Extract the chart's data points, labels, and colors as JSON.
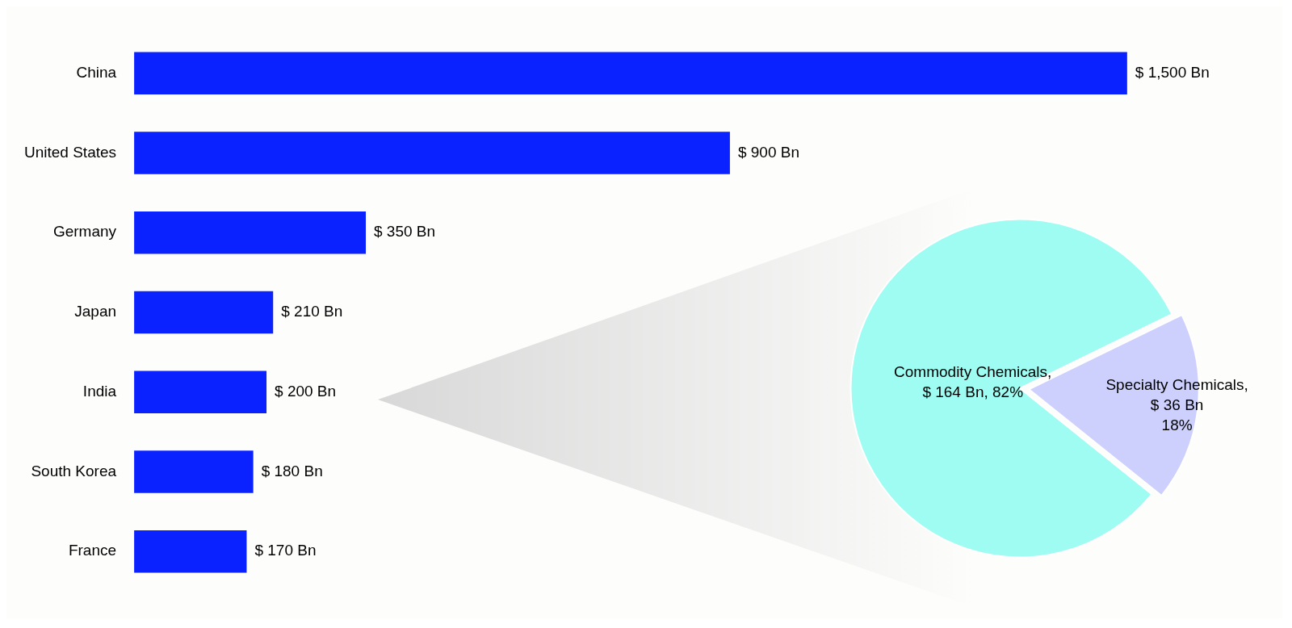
{
  "chart_data": [
    {
      "type": "bar",
      "orientation": "horizontal",
      "categories": [
        "China",
        "United States",
        "Germany",
        "Japan",
        "India",
        "South Korea",
        "France"
      ],
      "values": [
        1500,
        900,
        350,
        210,
        200,
        180,
        170
      ],
      "color": "#0a22ff",
      "value_labels": [
        "$ 1,500 Bn",
        "$ 900 Bn",
        "$ 350 Bn",
        "$ 210 Bn",
        "$ 200 Bn",
        "$ 180 Bn",
        "$ 170 Bn"
      ],
      "grid": false,
      "legend": false
    },
    {
      "type": "pie",
      "categories": [
        "Commodity Chemicals",
        "Specialty Chemicals"
      ],
      "values": [
        164,
        36
      ],
      "colors": [
        "#9efcf2",
        "#cdd0fc"
      ],
      "value_labels": [
        ",\n$ 164 Bn, 82%",
        ",\n$ 36 Bn\n18%"
      ],
      "legend": false
    }
  ]
}
